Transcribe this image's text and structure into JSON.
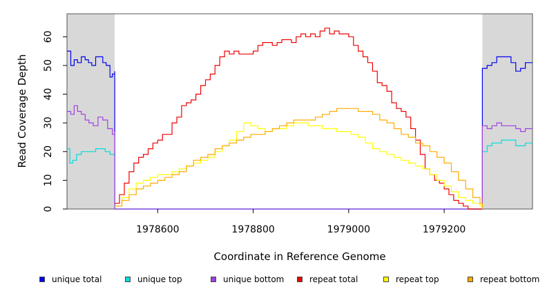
{
  "chart_data": {
    "type": "line",
    "title": "",
    "xlabel": "Coordinate in Reference Genome",
    "ylabel": "Read Coverage Depth",
    "xlim": [
      1978410,
      1979385
    ],
    "ylim": [
      0,
      68
    ],
    "xticks": [
      1978600,
      1978800,
      1979000,
      1979200
    ],
    "xtick_labels": [
      "1978600",
      "1978800",
      "1979000",
      "1979200"
    ],
    "yticks": [
      0,
      10,
      20,
      30,
      40,
      50,
      60
    ],
    "ytick_labels": [
      "0",
      "10",
      "20",
      "30",
      "40",
      "50",
      "60"
    ],
    "shaded_regions": [
      [
        1978410,
        1978510
      ],
      [
        1979280,
        1979385
      ]
    ],
    "grid": false,
    "legend_position": "bottom",
    "series": [
      {
        "name": "unique total",
        "color": "#0000ee",
        "x": [
          1978410,
          1978418,
          1978425,
          1978432,
          1978440,
          1978448,
          1978455,
          1978462,
          1978470,
          1978478,
          1978485,
          1978492,
          1978500,
          1978505,
          1978510,
          1978510,
          1979280,
          1979280,
          1979290,
          1979300,
          1979310,
          1979320,
          1979330,
          1979340,
          1979350,
          1979360,
          1979370,
          1979385
        ],
        "y": [
          55,
          50,
          52,
          51,
          53,
          52,
          51,
          50,
          53,
          53,
          51,
          50,
          46,
          47,
          48,
          0,
          0,
          49,
          50,
          51,
          53,
          53,
          53,
          51,
          48,
          49,
          51,
          51
        ]
      },
      {
        "name": "unique top",
        "color": "#00dddd",
        "x": [
          1978410,
          1978416,
          1978422,
          1978430,
          1978440,
          1978450,
          1978460,
          1978470,
          1978480,
          1978490,
          1978500,
          1978510,
          1978510,
          1979280,
          1979280,
          1979290,
          1979300,
          1979310,
          1979320,
          1979330,
          1979340,
          1979350,
          1979360,
          1979370,
          1979385
        ],
        "y": [
          21,
          16,
          17,
          19,
          20,
          20,
          20,
          21,
          21,
          20,
          19,
          20,
          0,
          0,
          20,
          22,
          23,
          23,
          24,
          24,
          24,
          22,
          22,
          23,
          23
        ]
      },
      {
        "name": "unique bottom",
        "color": "#a040e0",
        "x": [
          1978410,
          1978418,
          1978425,
          1978432,
          1978440,
          1978448,
          1978456,
          1978465,
          1978475,
          1978485,
          1978495,
          1978505,
          1978510,
          1978510,
          1979280,
          1979280,
          1979290,
          1979300,
          1979310,
          1979320,
          1979330,
          1979340,
          1979350,
          1979360,
          1979370,
          1979385
        ],
        "y": [
          34,
          33,
          36,
          34,
          33,
          31,
          30,
          29,
          32,
          31,
          28,
          26,
          27,
          0,
          0,
          29,
          28,
          29,
          30,
          29,
          29,
          29,
          28,
          27,
          28,
          28
        ]
      },
      {
        "name": "repeat total",
        "color": "#ee0000",
        "x": [
          1978510,
          1978520,
          1978530,
          1978540,
          1978550,
          1978560,
          1978570,
          1978580,
          1978590,
          1978600,
          1978610,
          1978620,
          1978630,
          1978640,
          1978650,
          1978660,
          1978670,
          1978680,
          1978690,
          1978700,
          1978710,
          1978720,
          1978730,
          1978740,
          1978750,
          1978760,
          1978770,
          1978780,
          1978790,
          1978800,
          1978810,
          1978820,
          1978830,
          1978840,
          1978850,
          1978860,
          1978870,
          1978880,
          1978890,
          1978900,
          1978910,
          1978920,
          1978930,
          1978940,
          1978950,
          1978960,
          1978970,
          1978980,
          1978990,
          1979000,
          1979010,
          1979020,
          1979030,
          1979040,
          1979050,
          1979060,
          1979070,
          1979080,
          1979090,
          1979100,
          1979110,
          1979120,
          1979130,
          1979140,
          1979150,
          1979160,
          1979170,
          1979180,
          1979190,
          1979200,
          1979210,
          1979220,
          1979230,
          1979240,
          1979250,
          1979260,
          1979270,
          1979280
        ],
        "y": [
          2,
          5,
          9,
          13,
          16,
          18,
          19,
          21,
          23,
          24,
          26,
          26,
          30,
          32,
          36,
          37,
          38,
          40,
          43,
          45,
          47,
          50,
          53,
          55,
          54,
          55,
          54,
          54,
          54,
          55,
          57,
          58,
          58,
          57,
          58,
          59,
          59,
          58,
          60,
          61,
          60,
          61,
          60,
          62,
          63,
          61,
          62,
          61,
          61,
          60,
          57,
          55,
          53,
          51,
          48,
          44,
          43,
          41,
          37,
          35,
          34,
          32,
          28,
          24,
          19,
          14,
          12,
          10,
          9,
          7,
          5,
          3,
          2,
          1,
          0,
          0,
          0,
          0
        ]
      },
      {
        "name": "repeat top",
        "color": "#ffff00",
        "x": [
          1978510,
          1978525,
          1978540,
          1978555,
          1978570,
          1978585,
          1978600,
          1978615,
          1978630,
          1978645,
          1978660,
          1978675,
          1978690,
          1978705,
          1978720,
          1978735,
          1978750,
          1978765,
          1978780,
          1978795,
          1978810,
          1978825,
          1978840,
          1978855,
          1978870,
          1978885,
          1978900,
          1978915,
          1978930,
          1978945,
          1978960,
          1978975,
          1978990,
          1979005,
          1979020,
          1979035,
          1979050,
          1979065,
          1979080,
          1979095,
          1979110,
          1979125,
          1979140,
          1979155,
          1979170,
          1979185,
          1979200,
          1979215,
          1979230,
          1979245,
          1979260,
          1979275,
          1979280
        ],
        "y": [
          1,
          4,
          7,
          9,
          10,
          11,
          12,
          12,
          13,
          14,
          15,
          16,
          17,
          18,
          20,
          22,
          24,
          27,
          30,
          29,
          28,
          27,
          28,
          28,
          29,
          30,
          30,
          29,
          29,
          28,
          28,
          27,
          27,
          26,
          25,
          23,
          21,
          20,
          19,
          18,
          17,
          16,
          15,
          14,
          12,
          10,
          8,
          6,
          4,
          3,
          2,
          1,
          0
        ]
      },
      {
        "name": "repeat bottom",
        "color": "#ffaa00",
        "x": [
          1978510,
          1978525,
          1978540,
          1978555,
          1978570,
          1978585,
          1978600,
          1978615,
          1978630,
          1978645,
          1978660,
          1978675,
          1978690,
          1978705,
          1978720,
          1978735,
          1978750,
          1978765,
          1978780,
          1978795,
          1978810,
          1978825,
          1978840,
          1978855,
          1978870,
          1978885,
          1978900,
          1978915,
          1978930,
          1978945,
          1978960,
          1978975,
          1978990,
          1979005,
          1979020,
          1979035,
          1979050,
          1979065,
          1979080,
          1979095,
          1979110,
          1979125,
          1979140,
          1979155,
          1979170,
          1979185,
          1979200,
          1979215,
          1979230,
          1979245,
          1979260,
          1979275,
          1979280
        ],
        "y": [
          1,
          3,
          5,
          7,
          8,
          9,
          10,
          11,
          12,
          13,
          15,
          17,
          18,
          19,
          21,
          22,
          23,
          24,
          25,
          26,
          26,
          27,
          28,
          29,
          30,
          31,
          31,
          31,
          32,
          33,
          34,
          35,
          35,
          35,
          34,
          34,
          33,
          31,
          30,
          28,
          26,
          25,
          23,
          22,
          20,
          18,
          16,
          13,
          10,
          7,
          4,
          2,
          0
        ]
      }
    ]
  }
}
